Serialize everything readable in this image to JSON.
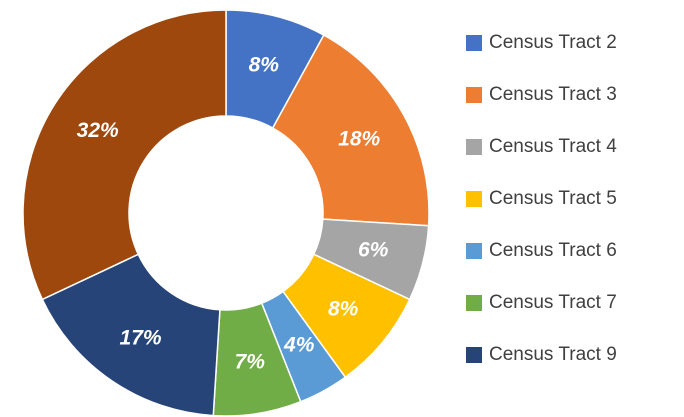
{
  "chart_data": {
    "type": "donut",
    "categories": [
      "Census Tract 2",
      "Census Tract 3",
      "Census Tract 4",
      "Census Tract 5",
      "Census Tract 6",
      "Census Tract 7",
      "Census Tract 9",
      null
    ],
    "values": [
      8,
      18,
      6,
      8,
      4,
      7,
      17,
      32
    ],
    "value_labels": [
      "8%",
      "18%",
      "6%",
      "8%",
      "4%",
      "7%",
      "17%",
      "32%"
    ],
    "colors": [
      "#4472c4",
      "#ed7d31",
      "#a5a5a5",
      "#ffc000",
      "#5b9bd5",
      "#70ad47",
      "#264478",
      "#9e480e"
    ],
    "legend": "right"
  }
}
